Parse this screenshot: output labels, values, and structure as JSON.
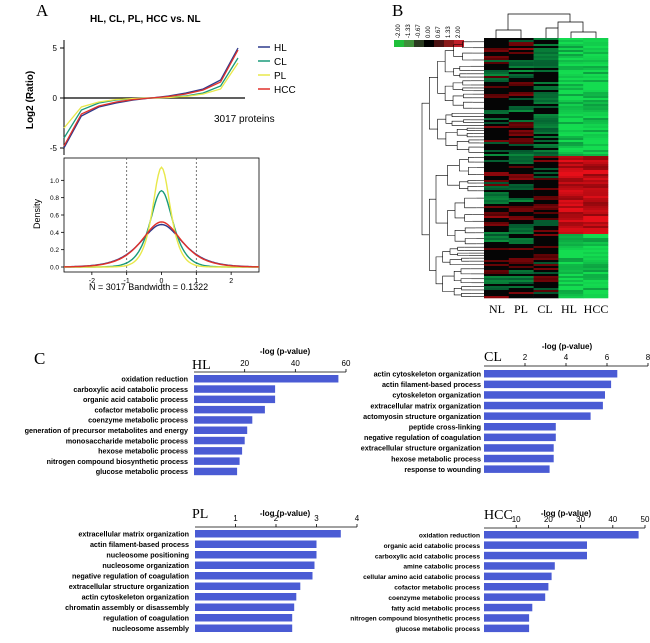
{
  "panels": {
    "A": "A",
    "B": "B",
    "C": "C"
  },
  "panelA": {
    "title": "HL, CL, PL, HCC vs. NL",
    "legend": [
      "HL",
      "CL",
      "PL",
      "HCC"
    ],
    "proteins_note": "3017 proteins",
    "bottom_caption": "N = 3017   Bandwidth = 0.1322"
  },
  "panelB": {
    "column_labels": [
      "NL",
      "PL",
      "CL",
      "HL",
      "HCC"
    ],
    "scale_labels": [
      "-2.00",
      "-1.33",
      "-0.67",
      "0.00",
      "0.67",
      "1.33",
      "2.00"
    ]
  },
  "colors": {
    "HL": "#2e3a8c",
    "CL": "#1a9a7a",
    "PL": "#e8e84a",
    "HCC": "#e0302a",
    "bar": "#4a5bd4"
  },
  "chart_data": [
    {
      "type": "line",
      "title": "HL, CL, PL, HCC vs. NL",
      "ylabel": "Log2 (Ratio)",
      "xlabel": "",
      "ylim": [
        -5.5,
        5.5
      ],
      "yticks": [
        "5",
        "0",
        "-5"
      ],
      "x": [
        0,
        1,
        2,
        3,
        4,
        5,
        6,
        7,
        8,
        9,
        10
      ],
      "series": [
        {
          "name": "HL",
          "values": [
            -5,
            -1.8,
            -0.9,
            -0.5,
            -0.2,
            0,
            0.2,
            0.5,
            0.9,
            1.8,
            5
          ]
        },
        {
          "name": "CL",
          "values": [
            -4,
            -1.2,
            -0.5,
            -0.2,
            -0.08,
            0,
            0.08,
            0.2,
            0.5,
            1.2,
            4
          ]
        },
        {
          "name": "PL",
          "values": [
            -3,
            -0.9,
            -0.4,
            -0.15,
            -0.05,
            0,
            0.05,
            0.15,
            0.4,
            0.9,
            3.5
          ]
        },
        {
          "name": "HCC",
          "values": [
            -4.8,
            -1.6,
            -0.8,
            -0.4,
            -0.15,
            0,
            0.15,
            0.4,
            0.8,
            1.6,
            4.8
          ]
        }
      ]
    },
    {
      "type": "line",
      "title": "",
      "xlabel": "N = 3017   Bandwidth = 0.1322",
      "ylabel": "Density",
      "xlim": [
        -2.8,
        2.8
      ],
      "ylim": [
        0,
        1.2
      ],
      "xticks": [
        "-2",
        "-1",
        "0",
        "1",
        "2"
      ],
      "yticks": [
        "0.0",
        "0.2",
        "0.4",
        "0.6",
        "0.8",
        "1.0"
      ],
      "reference_lines_x": [
        -1,
        1
      ],
      "series": [
        {
          "name": "HL",
          "peak": 0.49,
          "sd": 0.82
        },
        {
          "name": "CL",
          "peak": 0.88,
          "sd": 0.45
        },
        {
          "name": "PL",
          "peak": 1.15,
          "sd": 0.35
        },
        {
          "name": "HCC",
          "peak": 0.52,
          "sd": 0.78
        }
      ]
    },
    {
      "type": "bar",
      "group": "HL",
      "xlabel": "-log (p-value)",
      "xlim": [
        0,
        60
      ],
      "xticks": [
        "20",
        "40",
        "60"
      ],
      "categories": [
        "oxidation reduction",
        "carboxylic acid catabolic process",
        "organic acid catabolic process",
        "cofactor metabolic process",
        "coenzyme metabolic process",
        "generation of precursor metabolites and energy",
        "monosaccharide metabolic process",
        "hexose metabolic process",
        "nitrogen compound biosynthetic process",
        "glucose metabolic process"
      ],
      "values": [
        57,
        32,
        32,
        28,
        23,
        21,
        20,
        19,
        18,
        17
      ]
    },
    {
      "type": "bar",
      "group": "CL",
      "xlabel": "-log (p-value)",
      "xlim": [
        0,
        8
      ],
      "xticks": [
        "2",
        "4",
        "6",
        "8"
      ],
      "categories": [
        "actin cytoskeleton organization",
        "actin filament-based process",
        "cytoskeleton organization",
        "extracellular matrix organization",
        "actomyosin structure organization",
        "peptide cross-linking",
        "negative regulation of coagulation",
        "extracellular structure organization",
        "hexose metabolic process",
        "response to wounding"
      ],
      "values": [
        6.5,
        6.2,
        5.9,
        5.8,
        5.2,
        3.5,
        3.5,
        3.4,
        3.4,
        3.2
      ]
    },
    {
      "type": "bar",
      "group": "PL",
      "xlabel": "-log (p-value)",
      "xlim": [
        0,
        4
      ],
      "xticks": [
        "1",
        "2",
        "3",
        "4"
      ],
      "categories": [
        "extracellular matrix organization",
        "actin filament-based process",
        "nucleosome positioning",
        "nucleosome organization",
        "negative regulation of coagulation",
        "extracellular structure organization",
        "actin cytoskeleton organization",
        "chromatin assembly or disassembly",
        "regulation of coagulation",
        "nucleosome assembly"
      ],
      "values": [
        3.6,
        3.0,
        3.0,
        2.95,
        2.9,
        2.6,
        2.5,
        2.45,
        2.4,
        2.4
      ]
    },
    {
      "type": "bar",
      "group": "HCC",
      "xlabel": "-log (p-value)",
      "xlim": [
        0,
        50
      ],
      "xticks": [
        "10",
        "20",
        "30",
        "40",
        "50"
      ],
      "categories": [
        "oxidation reduction",
        "organic acid catabolic process",
        "carboxylic acid catabolic process",
        "amine catabolic process",
        "cellular amino acid catabolic process",
        "cofactor metabolic process",
        "coenzyme metabolic process",
        "fatty acid metabolic process",
        "nitrogen compound biosynthetic process",
        "glucose metabolic process"
      ],
      "values": [
        48,
        32,
        32,
        22,
        21,
        20,
        19,
        15,
        14,
        14
      ]
    }
  ]
}
